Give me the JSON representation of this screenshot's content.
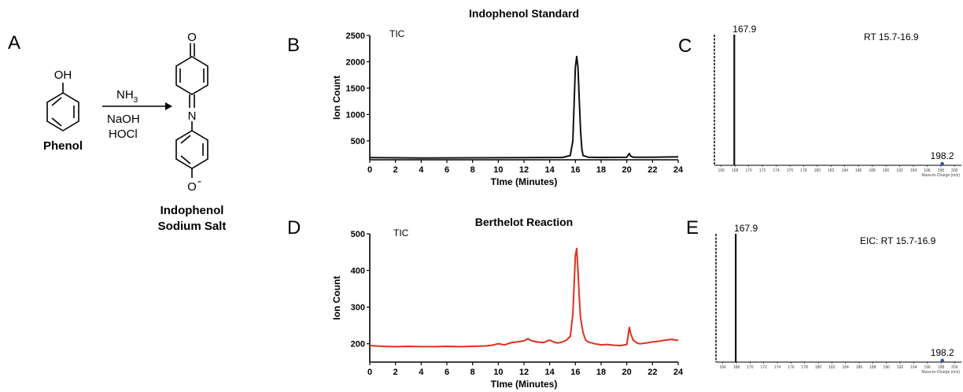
{
  "scheme": {
    "panel_label": "A",
    "phenol_group": "OH",
    "phenol_name": "Phenol",
    "reagent_1": "NH",
    "reagent_1_sub": "3",
    "reagent_2": "NaOH",
    "reagent_3": "HOCl",
    "product_o_top": "O",
    "product_n": "N",
    "product_o_bottom": "O",
    "product_charge": "-",
    "product_name_line1": "Indophenol",
    "product_name_line2": "Sodium Salt",
    "line_color": "#000000"
  },
  "chart_data": [
    {
      "id": "B",
      "panel_label": "B",
      "type": "line",
      "title": "Indophenol Standard",
      "annotation": "TIC",
      "xlabel": "TIme (Minutes)",
      "ylabel": "Ion Count",
      "xlim": [
        0,
        24
      ],
      "ylim": [
        140,
        2500
      ],
      "xticks": [
        0,
        2,
        4,
        6,
        8,
        10,
        12,
        14,
        16,
        18,
        20,
        22,
        24
      ],
      "yticks": [
        500,
        1000,
        1500,
        2000,
        2500
      ],
      "color": "#111111",
      "series": [
        {
          "x": [
            0,
            4,
            8,
            12,
            15.0,
            15.6,
            15.8,
            15.9,
            16.0,
            16.1,
            16.2,
            16.3,
            16.4,
            16.5,
            16.6,
            17.0,
            18,
            20.0,
            20.2,
            20.3,
            20.5,
            22,
            24
          ],
          "y": [
            180,
            175,
            178,
            180,
            185,
            220,
            500,
            1200,
            1900,
            2100,
            1900,
            1300,
            700,
            350,
            220,
            190,
            185,
            190,
            260,
            210,
            190,
            190,
            195
          ]
        }
      ]
    },
    {
      "id": "C",
      "panel_label": "C",
      "type": "bar",
      "annotation": "RT 15.7-16.9",
      "xlabel": "Mass-to-Charge (m/z)",
      "xlim": [
        165,
        201
      ],
      "ylim": [
        0,
        100
      ],
      "xticks": [
        166,
        168,
        170,
        172,
        174,
        176,
        178,
        180,
        182,
        184,
        186,
        188,
        190,
        192,
        194,
        196,
        198,
        200
      ],
      "color": "#111111",
      "peaks": [
        {
          "x": 167.9,
          "y": 100,
          "label": "167.9"
        },
        {
          "x": 198.2,
          "y": 1.5,
          "label": "198.2"
        }
      ]
    },
    {
      "id": "D",
      "panel_label": "D",
      "type": "line",
      "title": "Berthelot Reaction",
      "annotation": "TIC",
      "xlabel": "TIme (Minutes)",
      "ylabel": "Ion Count",
      "xlim": [
        0,
        24
      ],
      "ylim": [
        150,
        500
      ],
      "xticks": [
        0,
        2,
        4,
        6,
        8,
        10,
        12,
        14,
        16,
        18,
        20,
        22,
        24
      ],
      "yticks": [
        200,
        300,
        400,
        500
      ],
      "color": "#e0301e",
      "series": [
        {
          "x": [
            0,
            1,
            2,
            3,
            4,
            5,
            6,
            7,
            8,
            9,
            9.5,
            10,
            10.5,
            11,
            11.5,
            12,
            12.3,
            12.6,
            13,
            13.5,
            14,
            14.3,
            14.6,
            15,
            15.3,
            15.6,
            15.8,
            15.9,
            16.0,
            16.1,
            16.2,
            16.3,
            16.4,
            16.6,
            16.8,
            17,
            17.5,
            18,
            18.5,
            19,
            19.5,
            20,
            20.2,
            20.3,
            20.5,
            20.8,
            21,
            21.5,
            22,
            22.5,
            23,
            23.5,
            24
          ],
          "y": [
            195,
            193,
            192,
            193,
            192,
            192,
            193,
            192,
            193,
            194,
            196,
            200,
            197,
            203,
            205,
            208,
            214,
            208,
            205,
            203,
            210,
            205,
            202,
            205,
            210,
            220,
            280,
            360,
            440,
            460,
            400,
            330,
            270,
            230,
            210,
            205,
            200,
            197,
            198,
            196,
            195,
            198,
            245,
            228,
            210,
            202,
            200,
            202,
            205,
            207,
            210,
            212,
            209
          ]
        }
      ]
    },
    {
      "id": "E",
      "panel_label": "E",
      "type": "bar",
      "annotation": "EIC: RT 15.7-16.9",
      "xlabel": "Mass-to-Charge (m/z)",
      "xlim": [
        165,
        201
      ],
      "ylim": [
        0,
        100
      ],
      "xticks": [
        166,
        168,
        170,
        172,
        174,
        176,
        178,
        180,
        182,
        184,
        186,
        188,
        190,
        192,
        194,
        196,
        198,
        200
      ],
      "color": "#111111",
      "peaks": [
        {
          "x": 167.9,
          "y": 100,
          "label": "167.9"
        },
        {
          "x": 198.2,
          "y": 1.5,
          "label": "198.2"
        }
      ]
    }
  ]
}
